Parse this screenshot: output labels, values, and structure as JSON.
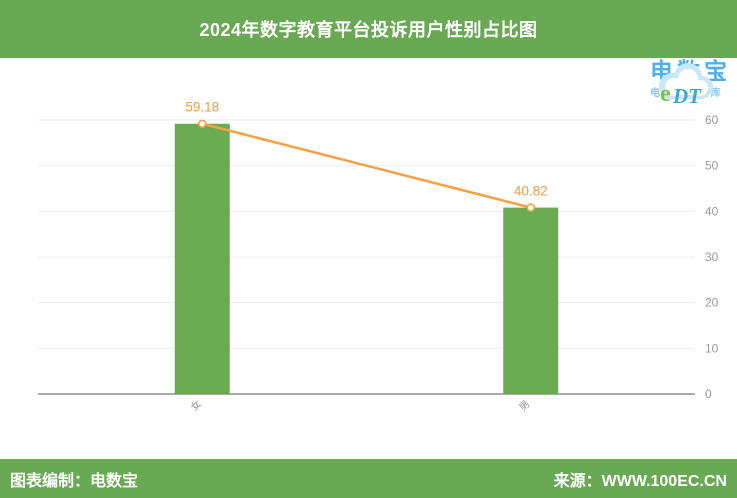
{
  "header": {
    "title": "2024年数字教育平台投诉用户性别占比图"
  },
  "logo": {
    "cloud_text": "eDT",
    "brand": "电数宝",
    "tagline_prefix": "电商大",
    "tagline_percent": "%",
    "tagline_suffix": "据库"
  },
  "footer": {
    "left": "图表编制：电数宝",
    "right": "来源：WWW.100EC.CN"
  },
  "colors": {
    "green": "#69a953",
    "bar": "#6aab52",
    "line": "#f3a144",
    "data_label": "#ef9b3d",
    "axis_text": "#999999",
    "gridline": "#ececec",
    "axis_line": "#777777",
    "logo_blue": "#4fb0e8",
    "logo_cloud": "#c9e8f9",
    "logo_e_green": "#7dc242",
    "logo_dt_blue": "#3aa7d0"
  },
  "chart_data": {
    "type": "bar",
    "overlay": "line",
    "title": "2024年数字教育平台投诉用户性别占比图",
    "categories": [
      "女",
      "男"
    ],
    "values": [
      59.18,
      40.82
    ],
    "data_labels": [
      "59.18",
      "40.82"
    ],
    "xlabel": "",
    "ylabel": "",
    "ylim": [
      0,
      60
    ],
    "yticks": [
      0,
      10,
      20,
      30,
      40,
      50,
      60
    ],
    "y_axis_position": "right",
    "grid": true,
    "legend": "none",
    "x_label_rotation_deg": -45
  }
}
